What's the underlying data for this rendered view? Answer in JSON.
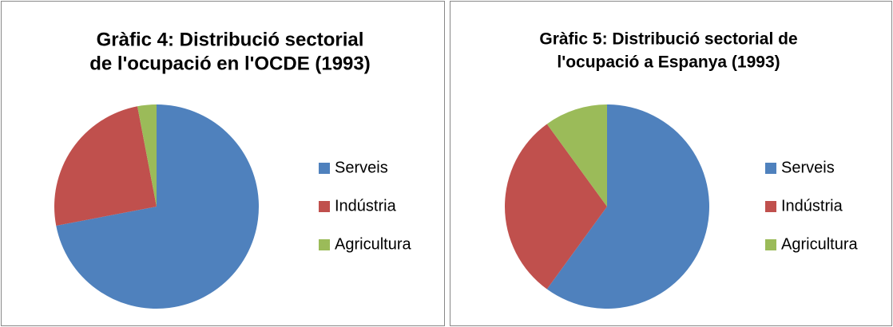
{
  "chart_data": [
    {
      "type": "pie",
      "title": "Gràfic 4: Distribució sectorial de l'ocupació en l'OCDE (1993)",
      "title_lines": [
        "Gràfic 4: Distribució sectorial",
        "de l'ocupació en l'OCDE (1993)"
      ],
      "categories": [
        "Serveis",
        "Indústria",
        "Agricultura"
      ],
      "values": [
        72,
        25,
        3
      ],
      "colors": [
        "#4f81bd",
        "#c0504d",
        "#9bbb59"
      ],
      "legend": "right"
    },
    {
      "type": "pie",
      "title": "Gràfic 5: Distribució sectorial de l'ocupació a Espanya (1993)",
      "title_lines": [
        "Gràfic 5: Distribució sectorial de",
        "l'ocupació a Espanya (1993)"
      ],
      "categories": [
        "Serveis",
        "Indústria",
        "Agricultura"
      ],
      "values": [
        60,
        30,
        10
      ],
      "colors": [
        "#4f81bd",
        "#c0504d",
        "#9bbb59"
      ],
      "legend": "right"
    }
  ]
}
